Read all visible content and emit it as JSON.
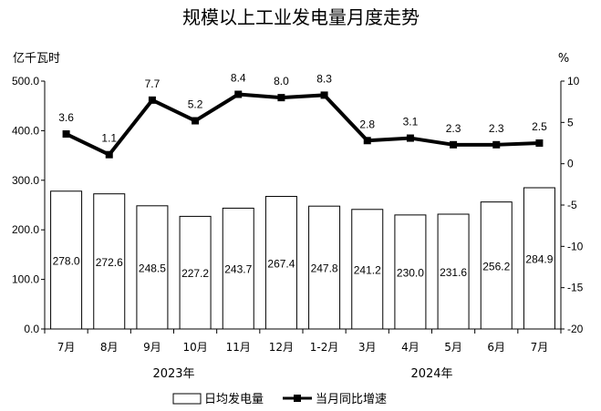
{
  "chart_data": {
    "type": "bar+line",
    "title": "规模以上工业发电量月度走势",
    "left_unit": "亿千瓦时",
    "right_unit": "%",
    "categories": [
      "7月",
      "8月",
      "9月",
      "10月",
      "11月",
      "12月",
      "1-2月",
      "3月",
      "4月",
      "5月",
      "6月",
      "7月"
    ],
    "year_labels": [
      {
        "label": "2023年",
        "from": 0,
        "to": 5
      },
      {
        "label": "2024年",
        "from": 6,
        "to": 11
      }
    ],
    "series": [
      {
        "name": "日均发电量",
        "type": "bar",
        "axis": "left",
        "values": [
          278.0,
          272.6,
          248.5,
          227.2,
          243.7,
          267.4,
          247.8,
          241.2,
          230.0,
          231.6,
          256.2,
          284.9
        ],
        "labels": [
          "278.0",
          "272.6",
          "248.5",
          "227.2",
          "243.7",
          "267.4",
          "247.8",
          "241.2",
          "230.0",
          "231.6",
          "256.2",
          "284.9"
        ]
      },
      {
        "name": "当月同比增速",
        "type": "line",
        "axis": "right",
        "values": [
          3.6,
          1.1,
          7.7,
          5.2,
          8.4,
          8.0,
          8.3,
          2.8,
          3.1,
          2.3,
          2.3,
          2.5
        ],
        "labels": [
          "3.6",
          "1.1",
          "7.7",
          "5.2",
          "8.4",
          "8.0",
          "8.3",
          "2.8",
          "3.1",
          "2.3",
          "2.3",
          "2.5"
        ]
      }
    ],
    "left_axis": {
      "range": [
        0,
        500
      ],
      "ticks": [
        "0.0",
        "100.0",
        "200.0",
        "300.0",
        "400.0",
        "500.0"
      ]
    },
    "right_axis": {
      "range": [
        -20,
        10
      ],
      "ticks": [
        "-20",
        "-15",
        "-10",
        "-5",
        "0",
        "5",
        "10"
      ]
    },
    "grid": false,
    "legend_position": "bottom-center",
    "colors": {
      "bar_fill": "#ffffff",
      "bar_stroke": "#000000",
      "line": "#000000",
      "axis": "#000000"
    }
  }
}
